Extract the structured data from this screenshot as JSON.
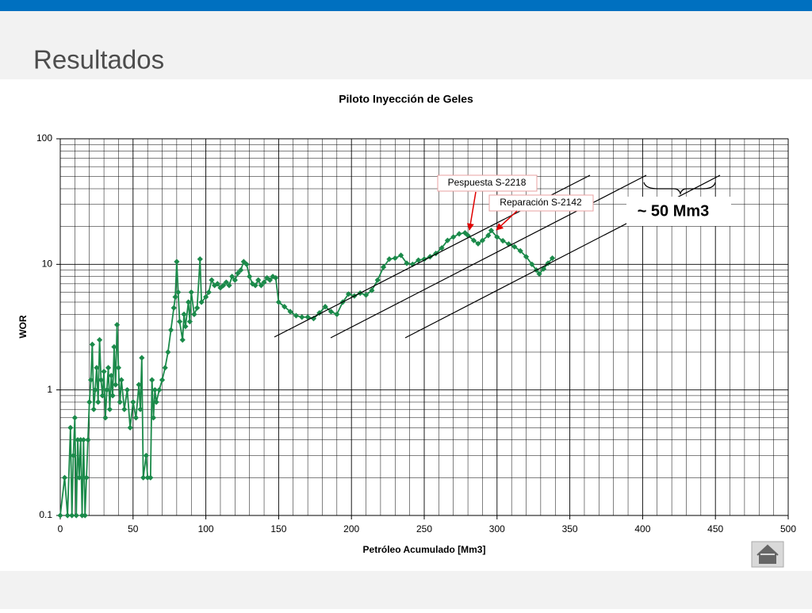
{
  "header": {
    "title": "Resultados"
  },
  "chart_data": {
    "type": "line",
    "title": "Piloto Inyección de Geles",
    "xlabel": "Petróleo Acumulado [Mm3]",
    "ylabel": "WOR",
    "yscale": "log",
    "grid": true,
    "color": "#1b8a4a",
    "xlim": [
      0,
      500
    ],
    "xticks": [
      0,
      50,
      100,
      150,
      200,
      250,
      300,
      350,
      400,
      450,
      500
    ],
    "xminorticks": [
      10,
      20,
      30,
      40,
      60,
      70,
      80,
      90,
      110,
      120,
      130,
      140,
      160,
      170,
      180,
      190,
      210,
      220,
      230,
      240,
      260,
      270,
      280,
      290,
      310,
      320,
      330,
      340,
      360,
      370,
      380,
      390,
      410,
      420,
      430,
      440,
      460,
      470,
      480,
      490
    ],
    "ylim": [
      0.1,
      100
    ],
    "yticks": [
      0.1,
      1,
      10,
      100
    ],
    "yminorticks": [
      0.2,
      0.3,
      0.4,
      0.5,
      0.6,
      0.7,
      0.8,
      0.9,
      2,
      3,
      4,
      5,
      6,
      7,
      8,
      9,
      20,
      30,
      40,
      50,
      60,
      70,
      80,
      90
    ],
    "x": [
      0,
      3,
      5,
      7,
      8,
      9,
      10,
      11,
      12,
      13,
      14,
      15,
      16,
      17,
      18,
      19,
      20,
      21,
      22,
      23,
      24,
      25,
      26,
      27,
      28,
      29,
      30,
      31,
      32,
      33,
      34,
      35,
      36,
      37,
      38,
      39,
      40,
      41,
      42,
      44,
      46,
      48,
      50,
      52,
      54,
      55,
      56,
      57,
      59,
      60,
      62,
      63,
      64,
      65,
      66,
      68,
      70,
      72,
      74,
      76,
      78,
      79,
      80,
      81,
      82,
      84,
      85,
      86,
      88,
      89,
      90,
      92,
      94,
      96,
      97,
      100,
      102,
      104,
      106,
      108,
      110,
      112,
      114,
      116,
      118,
      120,
      122,
      124,
      126,
      128,
      130,
      132,
      134,
      136,
      138,
      140,
      142,
      144,
      146,
      148,
      150,
      154,
      158,
      162,
      166,
      170,
      174,
      178,
      182,
      186,
      190,
      194,
      198,
      202,
      206,
      210,
      214,
      218,
      222,
      226,
      230,
      234,
      238,
      242,
      246,
      250,
      254,
      258,
      262,
      266,
      270,
      274,
      278,
      280,
      284,
      287,
      290,
      294,
      296,
      300,
      304,
      308,
      312,
      316,
      320,
      324,
      327,
      329,
      332,
      335,
      338
    ],
    "values": [
      0.1,
      0.2,
      0.1,
      0.5,
      0.1,
      0.3,
      0.6,
      0.1,
      0.4,
      0.2,
      0.4,
      0.1,
      0.4,
      0.1,
      0.2,
      0.4,
      0.8,
      1.2,
      2.3,
      0.7,
      1.0,
      1.5,
      0.8,
      2.5,
      1.2,
      0.9,
      1.4,
      0.6,
      1.0,
      1.5,
      0.7,
      1.3,
      0.9,
      2.2,
      1.1,
      3.3,
      1.5,
      0.8,
      1.2,
      0.7,
      1.0,
      0.5,
      0.8,
      0.6,
      1.1,
      0.7,
      1.8,
      0.2,
      0.3,
      0.2,
      0.2,
      1.2,
      0.6,
      1.0,
      0.8,
      1.0,
      1.2,
      1.5,
      2.0,
      3.0,
      4.5,
      5.5,
      10.5,
      6,
      3.5,
      2.5,
      4,
      3.2,
      5,
      3.5,
      6,
      4,
      4.5,
      11,
      5,
      5.5,
      6,
      7.5,
      6.8,
      7,
      6.5,
      6.8,
      7.2,
      6.8,
      8,
      7.5,
      8.5,
      9,
      10.5,
      10,
      8,
      7,
      6.8,
      7.5,
      6.8,
      7.2,
      7.8,
      7.5,
      8,
      7.8,
      5,
      4.6,
      4.2,
      3.9,
      3.8,
      3.8,
      3.7,
      4.1,
      4.6,
      4.2,
      4,
      5,
      5.8,
      5.6,
      5.9,
      5.7,
      6.2,
      7.5,
      9.5,
      11,
      11.2,
      11.8,
      10.2,
      10,
      10.8,
      11,
      11.5,
      12.2,
      13.5,
      15.5,
      16.5,
      17.5,
      17.8,
      17,
      15.5,
      14.6,
      15.5,
      17,
      18.6,
      16.5,
      15.4,
      14.5,
      13.8,
      12.8,
      11.5,
      10,
      9,
      8.4,
      9.2,
      10.2,
      11.2
    ],
    "annotations": [
      "Pespuesta S-2218",
      "Reparación S-2142",
      "~ 50 Mm3"
    ]
  }
}
